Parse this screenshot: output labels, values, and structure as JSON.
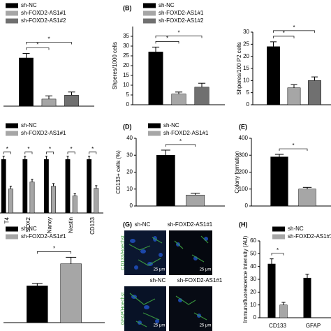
{
  "chart_data": [
    {
      "type": "bar",
      "categories": [
        null
      ],
      "series": [
        {
          "name": "sh-NC",
          "color": "#000000",
          "values": [
            75
          ],
          "errors": [
            7
          ]
        },
        {
          "name": "sh-FOXD2-AS1#1",
          "color": "#a6a6a6",
          "values": [
            11
          ],
          "errors": [
            5
          ]
        },
        {
          "name": "sh-FOXD2-AS1#2",
          "color": "#707070",
          "values": [
            17
          ],
          "errors": [
            5
          ]
        }
      ],
      "ylim": [
        0,
        100
      ],
      "legend": true,
      "annotations": [
        "*",
        "*"
      ]
    },
    {
      "type": "bar",
      "label": "(B)",
      "ylabel": "Shperes/1000 cells",
      "categories": [
        null
      ],
      "series": [
        {
          "name": "sh-NC",
          "color": "#000000",
          "values": [
            27
          ],
          "errors": [
            2.5
          ]
        },
        {
          "name": "sh-FOXD2-AS1#1",
          "color": "#a6a6a6",
          "values": [
            5.5
          ],
          "errors": [
            1
          ]
        },
        {
          "name": "sh-FOXD2-AS1#2",
          "color": "#707070",
          "values": [
            9
          ],
          "errors": [
            2
          ]
        }
      ],
      "ylim": [
        0,
        40
      ],
      "yticks": [
        0,
        5,
        10,
        15,
        20,
        25,
        30,
        35
      ],
      "legend": true,
      "annotations": [
        "*",
        "*"
      ]
    },
    {
      "type": "bar",
      "ylabel": "Shperes/100 P2 cells",
      "categories": [
        null
      ],
      "series": [
        {
          "name": "sh-NC",
          "color": "#000000",
          "values": [
            24
          ],
          "errors": [
            2
          ]
        },
        {
          "name": "sh-FOXD2-AS1#1",
          "color": "#a6a6a6",
          "values": [
            7
          ],
          "errors": [
            1.3
          ]
        },
        {
          "name": "sh-FOXD2-AS1#2",
          "color": "#707070",
          "values": [
            10
          ],
          "errors": [
            1.5
          ]
        }
      ],
      "ylim": [
        0,
        30
      ],
      "yticks": [
        0,
        5,
        10,
        15,
        20,
        25,
        30
      ],
      "legend": false,
      "annotations": [
        "*",
        "*"
      ]
    },
    {
      "type": "bar",
      "categories": [
        "T4",
        "SOX2",
        "Nanoy",
        "Nestin",
        "CD133"
      ],
      "series": [
        {
          "name": "sh-NC",
          "color": "#000000",
          "values": [
            1.0,
            1.0,
            1.0,
            1.0,
            1.0
          ],
          "errors": [
            0.06,
            0.06,
            0.06,
            0.06,
            0.06
          ]
        },
        {
          "name": "sh-FOXD2-AS1#1",
          "color": "#a6a6a6",
          "values": [
            0.45,
            0.58,
            0.5,
            0.32,
            0.46
          ],
          "errors": [
            0.05,
            0.05,
            0.05,
            0.04,
            0.05
          ]
        }
      ],
      "ylim": [
        0,
        1.2
      ],
      "legend": true,
      "annotations": [
        "*",
        "*",
        "*",
        "*",
        "*"
      ]
    },
    {
      "type": "bar",
      "label": "(D)",
      "ylabel": "CD133+ cells (%)",
      "categories": [
        null
      ],
      "series": [
        {
          "name": "sh-NC",
          "color": "#000000",
          "values": [
            30
          ],
          "errors": [
            3
          ]
        },
        {
          "name": "sh-FOXD2-AS1#1",
          "color": "#a6a6a6",
          "values": [
            6.5
          ],
          "errors": [
            1
          ]
        }
      ],
      "ylim": [
        0,
        40
      ],
      "yticks": [
        0,
        10,
        20,
        30,
        40
      ],
      "legend": true,
      "annotations": [
        "*"
      ]
    },
    {
      "type": "bar",
      "label": "(E)",
      "ylabel": "Colony formation",
      "categories": [
        null
      ],
      "series": [
        {
          "name": "sh-NC",
          "color": "#000000",
          "values": [
            290
          ],
          "errors": [
            15
          ]
        },
        {
          "name": "sh-FOXD2-AS1#1",
          "color": "#a6a6a6",
          "values": [
            100
          ],
          "errors": [
            10
          ]
        }
      ],
      "ylim": [
        0,
        400
      ],
      "yticks": [
        0,
        100,
        200,
        300,
        400
      ],
      "legend": false,
      "annotations": [
        "*"
      ]
    },
    {
      "type": "bar",
      "categories": [
        null
      ],
      "series": [
        {
          "name": "sh-NC",
          "color": "#000000",
          "values": [
            45
          ],
          "errors": [
            3
          ]
        },
        {
          "name": "sh-FOXD2-AS1#1",
          "color": "#a6a6a6",
          "values": [
            72
          ],
          "errors": [
            8
          ]
        }
      ],
      "ylim": [
        0,
        100
      ],
      "legend": true,
      "annotations": [
        "*"
      ]
    },
    {
      "type": "bar",
      "label": "(H)",
      "ylabel": "Immunofluorescence intensity (AU)",
      "categories": [
        "CD133",
        "GFAP"
      ],
      "series": [
        {
          "name": "sh-NC",
          "color": "#000000",
          "values": [
            42,
            31
          ],
          "errors": [
            4,
            3
          ]
        },
        {
          "name": "sh-FOXD2-AS1#1",
          "color": "#a6a6a6",
          "values": [
            10,
            null
          ],
          "errors": [
            2,
            null
          ]
        }
      ],
      "ylim": [
        0,
        60
      ],
      "yticks": [
        0,
        10,
        20,
        30,
        40,
        50,
        60
      ],
      "legend": true,
      "annotations": [
        "*"
      ]
    }
  ],
  "figure_g": {
    "label": "(G)",
    "columns": [
      "sh-NC",
      "sh-FOXD2-AS1#1"
    ],
    "rows": [
      "CD133/Hoechst",
      "GFAP/Hoechst"
    ],
    "scale_bar": "25 μm"
  }
}
